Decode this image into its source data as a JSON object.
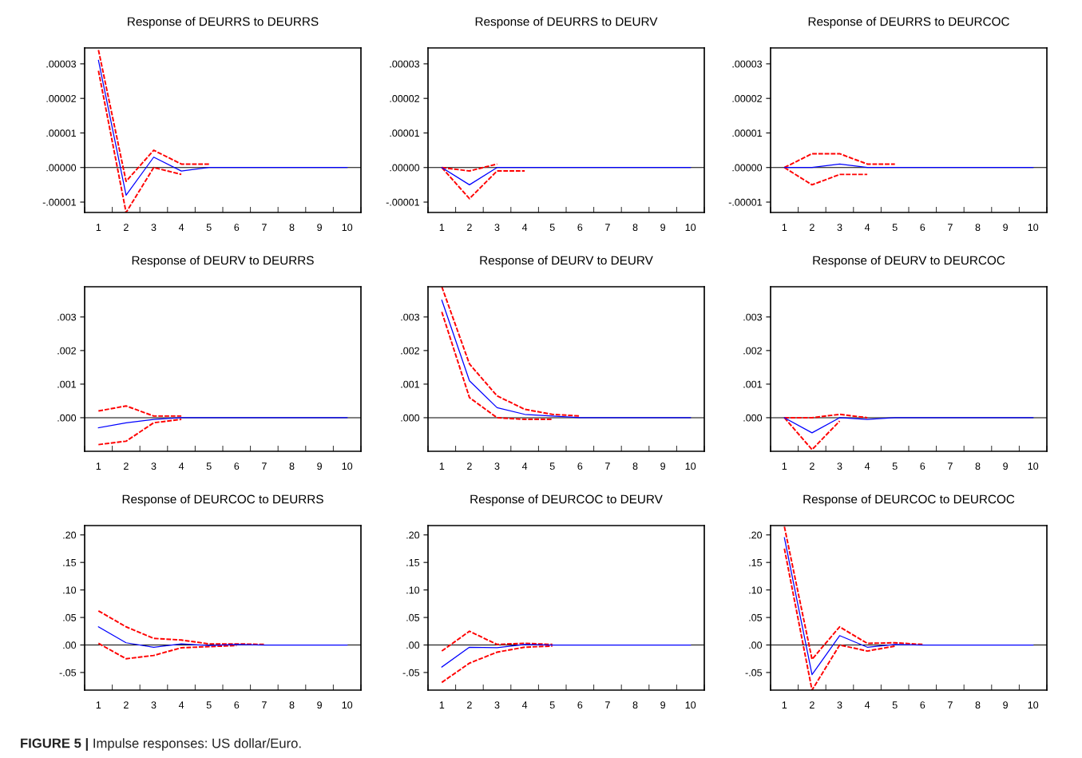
{
  "chart_data": [
    {
      "type": "line",
      "title": "Response of DEURRS to DEURRS",
      "categories": [
        "1",
        "2",
        "3",
        "4",
        "5",
        "6",
        "7",
        "8",
        "9",
        "10"
      ],
      "ylim": [
        -1.3e-05,
        3.46e-05
      ],
      "yticks": [
        {
          "value": -1e-05,
          "label": "-.00001"
        },
        {
          "value": 0,
          "label": ".00000"
        },
        {
          "value": 1e-05,
          "label": ".00001"
        },
        {
          "value": 2e-05,
          "label": ".00002"
        },
        {
          "value": 3e-05,
          "label": ".00003"
        }
      ],
      "marker": "none",
      "ref_lines": [
        {
          "axis": "y",
          "value": 0,
          "color": "#000000"
        }
      ],
      "series": [
        {
          "color": "#ff0000",
          "line_style": "dashed",
          "values": [
            3.4e-05,
            -4e-06,
            5e-06,
            1e-06,
            1e-06,
            null,
            null,
            null,
            null,
            null
          ]
        },
        {
          "color": "#ff0000",
          "line_style": "dashed",
          "values": [
            2.8e-05,
            -1.3e-05,
            0,
            -2e-06,
            null,
            null,
            null,
            null,
            null,
            null
          ]
        },
        {
          "color": "#0000ff",
          "line_style": "solid",
          "values": [
            3.1e-05,
            -8e-06,
            3e-06,
            -1e-06,
            0,
            0,
            0,
            0,
            0,
            0
          ]
        }
      ]
    },
    {
      "type": "line",
      "title": "Response of DEURRS to DEURV",
      "categories": [
        "1",
        "2",
        "3",
        "4",
        "5",
        "6",
        "7",
        "8",
        "9",
        "10"
      ],
      "ylim": [
        -1.3e-05,
        3.46e-05
      ],
      "yticks": [
        {
          "value": -1e-05,
          "label": "-.00001"
        },
        {
          "value": 0,
          "label": ".00000"
        },
        {
          "value": 1e-05,
          "label": ".00001"
        },
        {
          "value": 2e-05,
          "label": ".00002"
        },
        {
          "value": 3e-05,
          "label": ".00003"
        }
      ],
      "marker": "none",
      "ref_lines": [
        {
          "axis": "y",
          "value": 0,
          "color": "#000000"
        }
      ],
      "series": [
        {
          "color": "#ff0000",
          "line_style": "dashed",
          "values": [
            0,
            -1e-06,
            1e-06,
            null,
            null,
            null,
            null,
            null,
            null,
            null
          ]
        },
        {
          "color": "#ff0000",
          "line_style": "dashed",
          "values": [
            0,
            -9e-06,
            -1e-06,
            -1e-06,
            null,
            null,
            null,
            null,
            null,
            null
          ]
        },
        {
          "color": "#0000ff",
          "line_style": "solid",
          "values": [
            0,
            -5e-06,
            0,
            0,
            0,
            0,
            0,
            0,
            0,
            0
          ]
        }
      ]
    },
    {
      "type": "line",
      "title": "Response of DEURRS to DEURCOC",
      "categories": [
        "1",
        "2",
        "3",
        "4",
        "5",
        "6",
        "7",
        "8",
        "9",
        "10"
      ],
      "ylim": [
        -1.3e-05,
        3.46e-05
      ],
      "yticks": [
        {
          "value": -1e-05,
          "label": "-.00001"
        },
        {
          "value": 0,
          "label": ".00000"
        },
        {
          "value": 1e-05,
          "label": ".00001"
        },
        {
          "value": 2e-05,
          "label": ".00002"
        },
        {
          "value": 3e-05,
          "label": ".00003"
        }
      ],
      "marker": "none",
      "ref_lines": [
        {
          "axis": "y",
          "value": 0,
          "color": "#000000"
        }
      ],
      "series": [
        {
          "color": "#ff0000",
          "line_style": "dashed",
          "values": [
            0,
            4e-06,
            4e-06,
            1e-06,
            1e-06,
            null,
            null,
            null,
            null,
            null
          ]
        },
        {
          "color": "#ff0000",
          "line_style": "dashed",
          "values": [
            0,
            -5e-06,
            -2e-06,
            -2e-06,
            null,
            null,
            null,
            null,
            null,
            null
          ]
        },
        {
          "color": "#0000ff",
          "line_style": "solid",
          "values": [
            0,
            0,
            1e-06,
            0,
            0,
            0,
            0,
            0,
            0,
            0
          ]
        }
      ]
    },
    {
      "type": "line",
      "title": "Response of DEURV to DEURRS",
      "categories": [
        "1",
        "2",
        "3",
        "4",
        "5",
        "6",
        "7",
        "8",
        "9",
        "10"
      ],
      "ylim": [
        -0.001,
        0.0039
      ],
      "yticks": [
        {
          "value": 0,
          "label": ".000"
        },
        {
          "value": 0.001,
          "label": ".001"
        },
        {
          "value": 0.002,
          "label": ".002"
        },
        {
          "value": 0.003,
          "label": ".003"
        }
      ],
      "marker": "none",
      "ref_lines": [
        {
          "axis": "y",
          "value": 0,
          "color": "#000000"
        }
      ],
      "series": [
        {
          "color": "#ff0000",
          "line_style": "dashed",
          "values": [
            0.0002,
            0.00035,
            5e-05,
            5e-05,
            null,
            null,
            null,
            null,
            null,
            null
          ]
        },
        {
          "color": "#ff0000",
          "line_style": "dashed",
          "values": [
            -0.0008,
            -0.0007,
            -0.00015,
            -5e-05,
            null,
            null,
            null,
            null,
            null,
            null
          ]
        },
        {
          "color": "#0000ff",
          "line_style": "solid",
          "values": [
            -0.0003,
            -0.00015,
            -5e-05,
            0,
            0,
            0,
            0,
            0,
            0,
            0
          ]
        }
      ]
    },
    {
      "type": "line",
      "title": "Response of DEURV to DEURV",
      "categories": [
        "1",
        "2",
        "3",
        "4",
        "5",
        "6",
        "7",
        "8",
        "9",
        "10"
      ],
      "ylim": [
        -0.001,
        0.0039
      ],
      "yticks": [
        {
          "value": 0,
          "label": ".000"
        },
        {
          "value": 0.001,
          "label": ".001"
        },
        {
          "value": 0.002,
          "label": ".002"
        },
        {
          "value": 0.003,
          "label": ".003"
        }
      ],
      "marker": "none",
      "ref_lines": [
        {
          "axis": "y",
          "value": 0,
          "color": "#000000"
        }
      ],
      "series": [
        {
          "color": "#ff0000",
          "line_style": "dashed",
          "values": [
            0.0039,
            0.0016,
            0.00065,
            0.00025,
            0.0001,
            5e-05,
            null,
            null,
            null,
            null
          ]
        },
        {
          "color": "#ff0000",
          "line_style": "dashed",
          "values": [
            0.00315,
            0.0006,
            0,
            -5e-05,
            -5e-05,
            null,
            null,
            null,
            null,
            null
          ]
        },
        {
          "color": "#0000ff",
          "line_style": "solid",
          "values": [
            0.0035,
            0.0011,
            0.0003,
            0.0001,
            5e-05,
            0,
            0,
            0,
            0,
            0
          ]
        }
      ]
    },
    {
      "type": "line",
      "title": "Response of DEURV to DEURCOC",
      "categories": [
        "1",
        "2",
        "3",
        "4",
        "5",
        "6",
        "7",
        "8",
        "9",
        "10"
      ],
      "ylim": [
        -0.001,
        0.0039
      ],
      "yticks": [
        {
          "value": 0,
          "label": ".000"
        },
        {
          "value": 0.001,
          "label": ".001"
        },
        {
          "value": 0.002,
          "label": ".002"
        },
        {
          "value": 0.003,
          "label": ".003"
        }
      ],
      "marker": "none",
      "ref_lines": [
        {
          "axis": "y",
          "value": 0,
          "color": "#000000"
        }
      ],
      "series": [
        {
          "color": "#ff0000",
          "line_style": "dashed",
          "values": [
            0,
            0,
            0.0001,
            0,
            null,
            null,
            null,
            null,
            null,
            null
          ]
        },
        {
          "color": "#ff0000",
          "line_style": "dashed",
          "values": [
            0,
            -0.00095,
            -0.0001,
            null,
            null,
            null,
            null,
            null,
            null,
            null
          ]
        },
        {
          "color": "#0000ff",
          "line_style": "solid",
          "values": [
            0,
            -0.00045,
            0,
            -5e-05,
            0,
            0,
            0,
            0,
            0,
            0
          ]
        }
      ]
    },
    {
      "type": "line",
      "title": "Response of DEURCOC to DEURRS",
      "categories": [
        "1",
        "2",
        "3",
        "4",
        "5",
        "6",
        "7",
        "8",
        "9",
        "10"
      ],
      "ylim": [
        -0.082,
        0.217
      ],
      "yticks": [
        {
          "value": -0.05,
          "label": "-.05"
        },
        {
          "value": 0,
          "label": ".00"
        },
        {
          "value": 0.05,
          "label": ".05"
        },
        {
          "value": 0.1,
          "label": ".10"
        },
        {
          "value": 0.15,
          "label": ".15"
        },
        {
          "value": 0.2,
          "label": ".20"
        }
      ],
      "marker": "none",
      "ref_lines": [
        {
          "axis": "y",
          "value": 0,
          "color": "#000000"
        }
      ],
      "annotations": [
        "FIGURE 5 |",
        "Impulse responses: US dollar/Euro."
      ],
      "series": [
        {
          "color": "#ff0000",
          "line_style": "dashed",
          "values": [
            0.062,
            0.033,
            0.012,
            0.009,
            0.002,
            0.002,
            0.001,
            null,
            null,
            null
          ]
        },
        {
          "color": "#ff0000",
          "line_style": "dashed",
          "values": [
            0.003,
            -0.025,
            -0.019,
            -0.005,
            -0.003,
            -0.001,
            null,
            null,
            null,
            null
          ]
        },
        {
          "color": "#0000ff",
          "line_style": "solid",
          "values": [
            0.033,
            0.004,
            -0.004,
            0.002,
            -0.001,
            0.001,
            0,
            0,
            0,
            0
          ]
        }
      ]
    },
    {
      "type": "line",
      "title": "Response of DEURCOC to DEURV",
      "categories": [
        "1",
        "2",
        "3",
        "4",
        "5",
        "6",
        "7",
        "8",
        "9",
        "10"
      ],
      "ylim": [
        -0.082,
        0.217
      ],
      "yticks": [
        {
          "value": -0.05,
          "label": "-.05"
        },
        {
          "value": 0,
          "label": ".00"
        },
        {
          "value": 0.05,
          "label": ".05"
        },
        {
          "value": 0.1,
          "label": ".10"
        },
        {
          "value": 0.15,
          "label": ".15"
        },
        {
          "value": 0.2,
          "label": ".20"
        }
      ],
      "marker": "none",
      "ref_lines": [
        {
          "axis": "y",
          "value": 0,
          "color": "#000000"
        }
      ],
      "series": [
        {
          "color": "#ff0000",
          "line_style": "dashed",
          "values": [
            -0.011,
            0.025,
            0.001,
            0.003,
            0.001,
            null,
            null,
            null,
            null,
            null
          ]
        },
        {
          "color": "#ff0000",
          "line_style": "dashed",
          "values": [
            -0.068,
            -0.033,
            -0.013,
            -0.004,
            -0.002,
            null,
            null,
            null,
            null,
            null
          ]
        },
        {
          "color": "#0000ff",
          "line_style": "solid",
          "values": [
            -0.04,
            -0.004,
            -0.005,
            0.001,
            0,
            0,
            0,
            0,
            0,
            0
          ]
        }
      ]
    },
    {
      "type": "line",
      "title": "Response of DEURCOC to DEURCOC",
      "categories": [
        "1",
        "2",
        "3",
        "4",
        "5",
        "6",
        "7",
        "8",
        "9",
        "10"
      ],
      "ylim": [
        -0.082,
        0.217
      ],
      "yticks": [
        {
          "value": -0.05,
          "label": "-.05"
        },
        {
          "value": 0,
          "label": ".00"
        },
        {
          "value": 0.05,
          "label": ".05"
        },
        {
          "value": 0.1,
          "label": ".10"
        },
        {
          "value": 0.15,
          "label": ".15"
        },
        {
          "value": 0.2,
          "label": ".20"
        }
      ],
      "marker": "none",
      "ref_lines": [
        {
          "axis": "y",
          "value": 0,
          "color": "#000000"
        }
      ],
      "series": [
        {
          "color": "#ff0000",
          "line_style": "dashed",
          "values": [
            0.215,
            -0.026,
            0.033,
            0.003,
            0.004,
            0.001,
            null,
            null,
            null,
            null
          ]
        },
        {
          "color": "#ff0000",
          "line_style": "dashed",
          "values": [
            0.175,
            -0.082,
            0,
            -0.011,
            -0.002,
            null,
            null,
            null,
            null,
            null
          ]
        },
        {
          "color": "#0000ff",
          "line_style": "solid",
          "values": [
            0.195,
            -0.054,
            0.017,
            -0.004,
            0.001,
            0,
            0,
            0,
            0,
            0
          ]
        }
      ]
    }
  ]
}
